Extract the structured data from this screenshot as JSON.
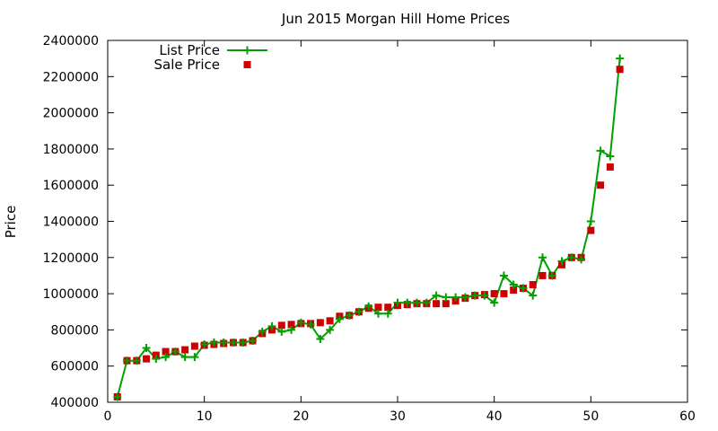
{
  "chart_data": {
    "type": "scatter",
    "title": "Jun 2015 Morgan Hill Home Prices",
    "xlabel": "",
    "ylabel": "Price",
    "xlim": [
      0,
      60
    ],
    "ylim": [
      400000,
      2400000
    ],
    "xticks": [
      0,
      10,
      20,
      30,
      40,
      50,
      60
    ],
    "yticks": [
      400000,
      600000,
      800000,
      1000000,
      1200000,
      1400000,
      1600000,
      1800000,
      2000000,
      2200000,
      2400000
    ],
    "xtick_labels": [
      "0",
      "10",
      "20",
      "30",
      "40",
      "50",
      "60"
    ],
    "ytick_labels": [
      "400000",
      "600000",
      "800000",
      "1000000",
      "1200000",
      "1400000",
      "1600000",
      "1800000",
      "2000000",
      "2200000",
      "2400000"
    ],
    "grid": false,
    "legend": "top-left",
    "series": [
      {
        "name": "List Price",
        "style": "linespoints",
        "color": "#00a000",
        "x": [
          1,
          2,
          3,
          4,
          5,
          6,
          7,
          8,
          9,
          10,
          11,
          12,
          13,
          14,
          15,
          16,
          17,
          18,
          19,
          20,
          21,
          22,
          23,
          24,
          25,
          26,
          27,
          28,
          29,
          30,
          31,
          32,
          33,
          34,
          35,
          36,
          37,
          38,
          39,
          40,
          41,
          42,
          43,
          44,
          45,
          46,
          47,
          48,
          49,
          50,
          51,
          52,
          53
        ],
        "y": [
          430000,
          630000,
          630000,
          700000,
          640000,
          650000,
          680000,
          650000,
          650000,
          720000,
          730000,
          730000,
          730000,
          730000,
          740000,
          790000,
          820000,
          790000,
          800000,
          840000,
          830000,
          750000,
          800000,
          860000,
          880000,
          900000,
          930000,
          890000,
          890000,
          950000,
          950000,
          950000,
          950000,
          990000,
          980000,
          980000,
          980000,
          990000,
          990000,
          950000,
          1100000,
          1050000,
          1030000,
          990000,
          1200000,
          1100000,
          1180000,
          1200000,
          1190000,
          1400000,
          1790000,
          1760000,
          2300000
        ]
      },
      {
        "name": "Sale Price",
        "style": "points",
        "color": "#cc0000",
        "x": [
          1,
          2,
          3,
          4,
          5,
          6,
          7,
          8,
          9,
          10,
          11,
          12,
          13,
          14,
          15,
          16,
          17,
          18,
          19,
          20,
          21,
          22,
          23,
          24,
          25,
          26,
          27,
          28,
          29,
          30,
          31,
          32,
          33,
          34,
          35,
          36,
          37,
          38,
          39,
          40,
          41,
          42,
          43,
          44,
          45,
          46,
          47,
          48,
          49,
          50,
          51,
          52,
          53
        ],
        "y": [
          430000,
          630000,
          630000,
          640000,
          660000,
          680000,
          680000,
          690000,
          710000,
          715000,
          720000,
          725000,
          730000,
          730000,
          740000,
          780000,
          800000,
          825000,
          830000,
          835000,
          835000,
          840000,
          850000,
          875000,
          880000,
          900000,
          920000,
          925000,
          925000,
          935000,
          940000,
          945000,
          945000,
          945000,
          945000,
          960000,
          975000,
          990000,
          995000,
          1000000,
          1000000,
          1020000,
          1030000,
          1050000,
          1100000,
          1100000,
          1160000,
          1200000,
          1200000,
          1350000,
          1600000,
          1700000,
          2240000
        ]
      }
    ]
  }
}
